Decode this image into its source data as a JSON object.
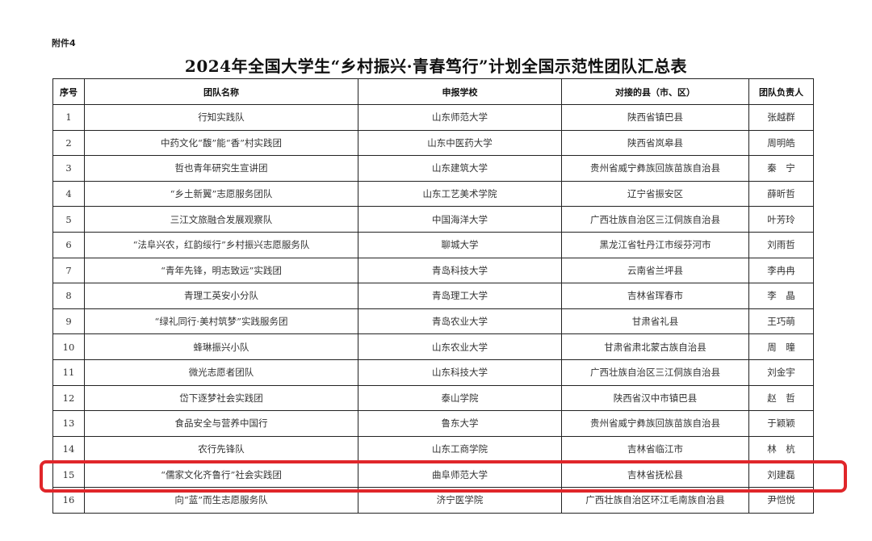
{
  "attachment_label": "附件4",
  "title": "2024年全国大学生“乡村振兴·青春笃行”计划全国示范性团队汇总表",
  "columns": [
    "序号",
    "团队名称",
    "申报学校",
    "对接的县（市、区）",
    "团队负责人"
  ],
  "rows": [
    [
      "1",
      "行知实践队",
      "山东师范大学",
      "陕西省镇巴县",
      "张越群"
    ],
    [
      "2",
      "中药文化“馥”能“香”村实践团",
      "山东中医药大学",
      "陕西省岚皋县",
      "周明皓"
    ],
    [
      "3",
      "哲也青年研究生宣讲团",
      "山东建筑大学",
      "贵州省威宁彝族回族苗族自治县",
      "秦　宁"
    ],
    [
      "4",
      "“乡土新翼”志愿服务团队",
      "山东工艺美术学院",
      "辽宁省振安区",
      "薛昕哲"
    ],
    [
      "5",
      "三江文旅融合发展观察队",
      "中国海洋大学",
      "广西壮族自治区三江侗族自治县",
      "叶芳玲"
    ],
    [
      "6",
      "“法阜兴农，红韵绥行”乡村振兴志愿服务队",
      "聊城大学",
      "黑龙江省牡丹江市绥芬河市",
      "刘雨哲"
    ],
    [
      "7",
      "“青年先锋，明志致远”实践团",
      "青岛科技大学",
      "云南省兰坪县",
      "李冉冉"
    ],
    [
      "8",
      "青理工英安小分队",
      "青岛理工大学",
      "吉林省珲春市",
      "李　晶"
    ],
    [
      "9",
      "“绿礼同行·美村筑梦”实践服务团",
      "青岛农业大学",
      "甘肃省礼县",
      "王巧萌"
    ],
    [
      "10",
      "蜂琳振兴小队",
      "山东农业大学",
      "甘肃省肃北蒙古族自治县",
      "周　曈"
    ],
    [
      "11",
      "微光志愿者团队",
      "山东科技大学",
      "广西壮族自治区三江侗族自治县",
      "刘金宇"
    ],
    [
      "12",
      "岱下逐梦社会实践团",
      "泰山学院",
      "陕西省汉中市镇巴县",
      "赵　哲"
    ],
    [
      "13",
      "食品安全与营养中国行",
      "鲁东大学",
      "贵州省威宁彝族回族苗族自治县",
      "于颖颖"
    ],
    [
      "14",
      "农行先锋队",
      "山东工商学院",
      "吉林省临江市",
      "林　杭"
    ],
    [
      "15",
      "“儒家文化齐鲁行”社会实践团",
      "曲阜师范大学",
      "吉林省抚松县",
      "刘建磊"
    ],
    [
      "16",
      "向“蓝”而生志愿服务队",
      "济宁医学院",
      "广西壮族自治区环江毛南族自治县",
      "尹恺悦"
    ]
  ],
  "highlighted_row": "15",
  "highlight_color": "#e0262a"
}
